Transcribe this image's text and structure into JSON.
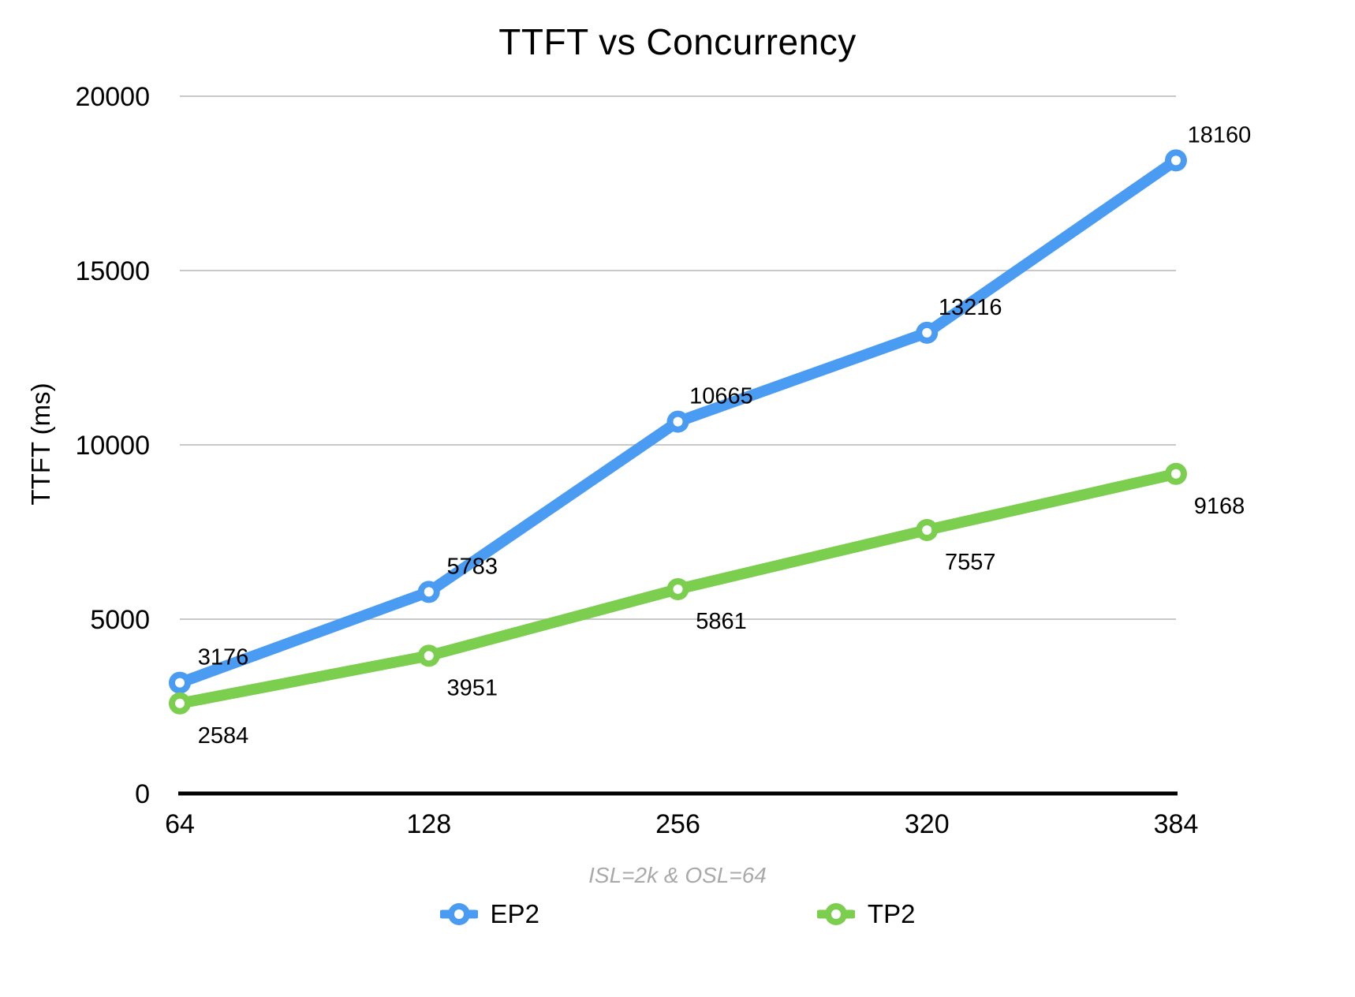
{
  "chart_data": {
    "type": "line",
    "title": "TTFT vs Concurrency",
    "subtitle": "ISL=2k & OSL=64",
    "ylabel": "TTFT (ms)",
    "categories": [
      "64",
      "128",
      "256",
      "320",
      "384"
    ],
    "series": [
      {
        "name": "EP2",
        "color": "#4a9bf2",
        "values": [
          3176,
          5783,
          10665,
          13216,
          18160
        ],
        "label_position": "above"
      },
      {
        "name": "TP2",
        "color": "#7bce4e",
        "values": [
          2584,
          3951,
          5861,
          7557,
          9168
        ],
        "label_position": "below"
      }
    ],
    "ylim": [
      0,
      20000
    ],
    "yticks": [
      0,
      5000,
      10000,
      15000,
      20000
    ],
    "grid": true,
    "gridline_color": "#c8c8c8",
    "axis_color": "#000000",
    "legend_position": "bottom"
  }
}
